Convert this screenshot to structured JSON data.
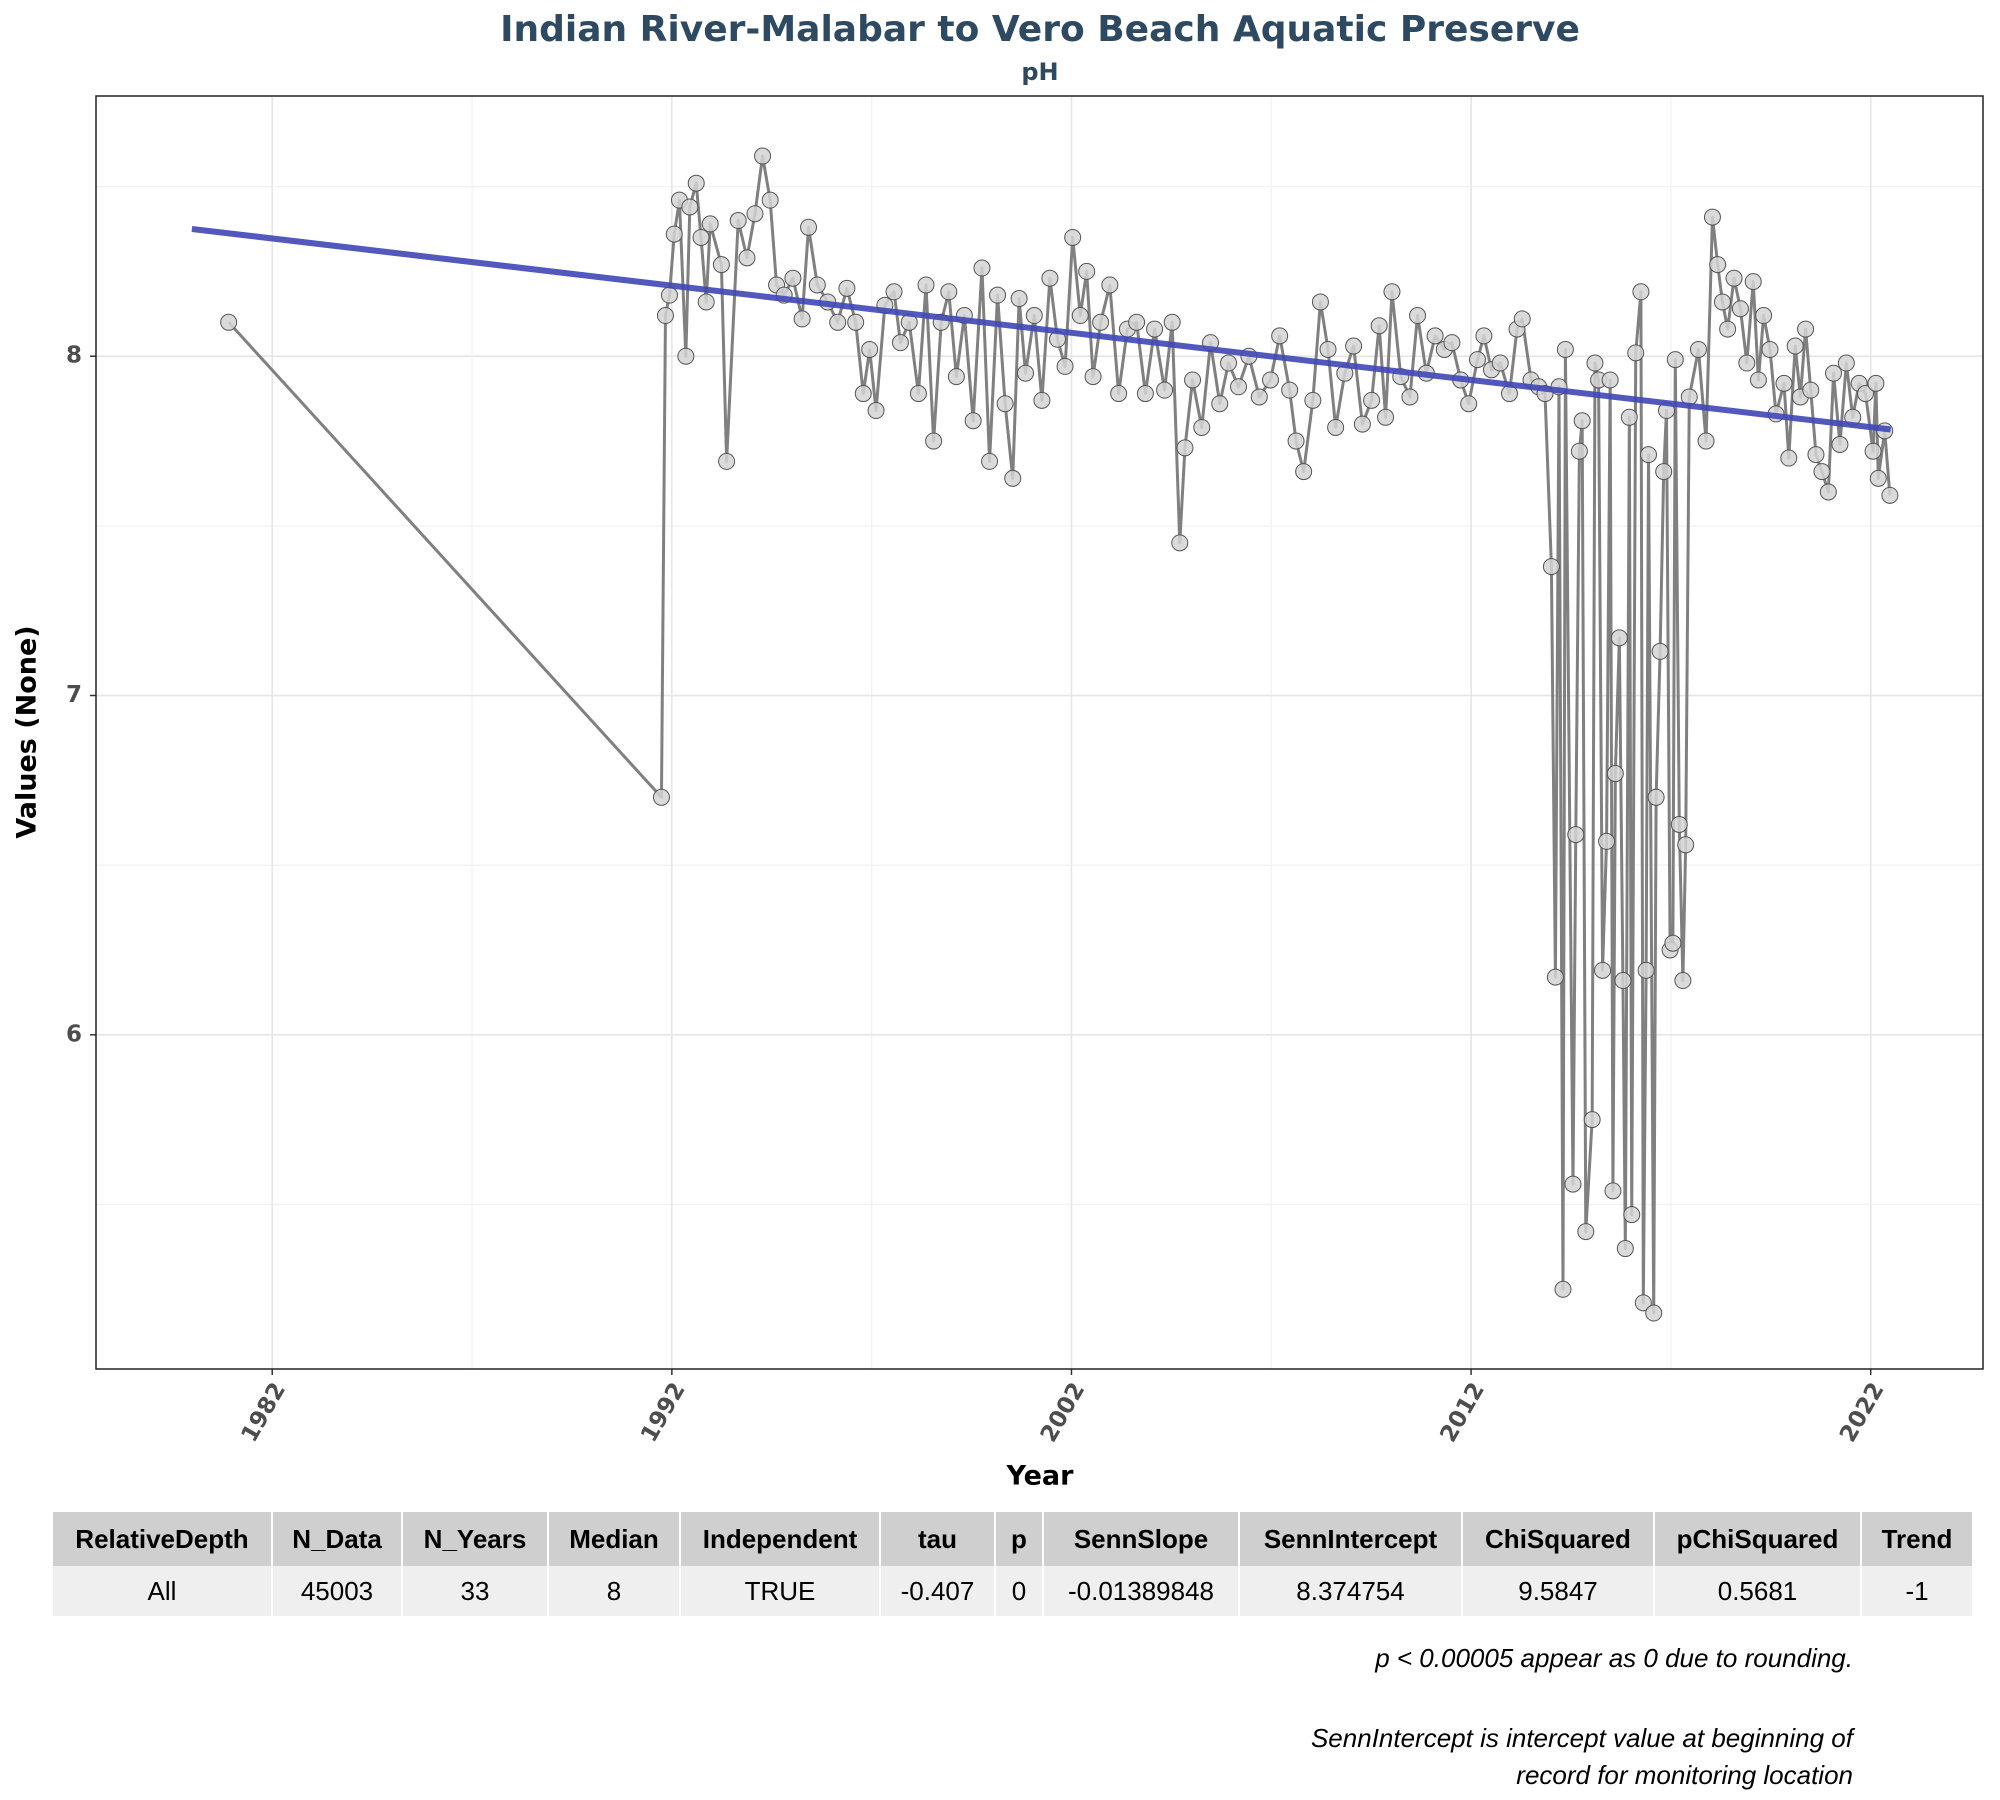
{
  "chart_data": {
    "type": "line",
    "title": "Indian River-Malabar to Vero Beach Aquatic Preserve",
    "subtitle": "pH",
    "xlabel": "Year",
    "ylabel": "Values (None)",
    "xlim": [
      1977.59,
      2024.81
    ],
    "ylim": [
      5.015,
      8.767
    ],
    "xticks": [
      1982,
      1992,
      2002,
      2012,
      2022
    ],
    "yticks": [
      6,
      7,
      8
    ],
    "x_minor_ticks": [
      1987,
      1997,
      2007,
      2017
    ],
    "y_minor_ticks": [
      5.5,
      6.5,
      7.5,
      8.5
    ],
    "grid": true,
    "series": [
      {
        "color": "#808080",
        "marker_color": "#d3d3d3",
        "markers": true,
        "x": [
          1980.91,
          1991.74,
          1991.84,
          1991.94,
          1992.06,
          1992.19,
          1992.35,
          1992.45,
          1992.61,
          1992.73,
          1992.86,
          1992.96,
          1993.24,
          1993.37,
          1993.66,
          1993.88,
          1994.08,
          1994.27,
          1994.46,
          1994.62,
          1994.81,
          1995.03,
          1995.26,
          1995.42,
          1995.64,
          1995.9,
          1996.15,
          1996.38,
          1996.6,
          1996.79,
          1996.95,
          1997.11,
          1997.33,
          1997.56,
          1997.72,
          1997.94,
          1998.17,
          1998.36,
          1998.55,
          1998.74,
          1998.93,
          1999.12,
          1999.32,
          1999.54,
          1999.76,
          1999.95,
          2000.15,
          2000.34,
          2000.53,
          2000.69,
          2000.85,
          2001.07,
          2001.26,
          2001.46,
          2001.65,
          2001.84,
          2002.03,
          2002.22,
          2002.38,
          2002.54,
          2002.73,
          2002.96,
          2003.18,
          2003.4,
          2003.63,
          2003.85,
          2004.08,
          2004.33,
          2004.52,
          2004.71,
          2004.84,
          2005.03,
          2005.26,
          2005.48,
          2005.71,
          2005.93,
          2006.18,
          2006.44,
          2006.7,
          2006.98,
          2007.21,
          2007.46,
          2007.62,
          2007.81,
          2008.04,
          2008.23,
          2008.42,
          2008.61,
          2008.84,
          2009.06,
          2009.28,
          2009.51,
          2009.7,
          2009.86,
          2010.02,
          2010.24,
          2010.47,
          2010.66,
          2010.88,
          2011.1,
          2011.33,
          2011.52,
          2011.74,
          2011.94,
          2012.16,
          2012.32,
          2012.51,
          2012.73,
          2012.96,
          2013.15,
          2013.28,
          2013.5,
          2013.69,
          2013.85,
          2014.01,
          2014.11,
          2014.2,
          2014.3,
          2014.36,
          2014.55,
          2014.62,
          2014.71,
          2014.78,
          2014.87,
          2015.03,
          2015.1,
          2015.19,
          2015.29,
          2015.39,
          2015.48,
          2015.55,
          2015.61,
          2015.71,
          2015.8,
          2015.86,
          2015.96,
          2016.02,
          2016.12,
          2016.25,
          2016.31,
          2016.38,
          2016.44,
          2016.57,
          2016.63,
          2016.73,
          2016.82,
          2016.89,
          2016.98,
          2017.05,
          2017.11,
          2017.21,
          2017.3,
          2017.37,
          2017.46,
          2017.69,
          2017.88,
          2018.04,
          2018.17,
          2018.29,
          2018.42,
          2018.58,
          2018.74,
          2018.9,
          2019.06,
          2019.19,
          2019.32,
          2019.48,
          2019.63,
          2019.83,
          2019.95,
          2020.11,
          2020.24,
          2020.37,
          2020.5,
          2020.63,
          2020.78,
          2020.94,
          2021.07,
          2021.23,
          2021.39,
          2021.55,
          2021.71,
          2021.87,
          2022.06,
          2022.13,
          2022.19,
          2022.35,
          2022.48
        ],
        "values": [
          8.1,
          6.7,
          8.12,
          8.18,
          8.36,
          8.46,
          8.0,
          8.44,
          8.51,
          8.35,
          8.16,
          8.39,
          8.27,
          7.69,
          8.4,
          8.29,
          8.42,
          8.59,
          8.46,
          8.21,
          8.18,
          8.23,
          8.11,
          8.38,
          8.21,
          8.16,
          8.1,
          8.2,
          8.1,
          7.89,
          8.02,
          7.84,
          8.15,
          8.19,
          8.04,
          8.1,
          7.89,
          8.21,
          7.75,
          8.1,
          8.19,
          7.94,
          8.12,
          7.81,
          8.26,
          7.69,
          8.18,
          7.86,
          7.64,
          8.17,
          7.95,
          8.12,
          7.87,
          8.23,
          8.05,
          7.97,
          8.35,
          8.12,
          8.25,
          7.94,
          8.1,
          8.21,
          7.89,
          8.08,
          8.1,
          7.89,
          8.08,
          7.9,
          8.1,
          7.45,
          7.73,
          7.93,
          7.79,
          8.04,
          7.86,
          7.98,
          7.91,
          8.0,
          7.88,
          7.93,
          8.06,
          7.9,
          7.75,
          7.66,
          7.87,
          8.16,
          8.02,
          7.79,
          7.95,
          8.03,
          7.8,
          7.87,
          8.09,
          7.82,
          8.19,
          7.94,
          7.88,
          8.12,
          7.95,
          8.06,
          8.02,
          8.04,
          7.93,
          7.86,
          7.99,
          8.06,
          7.96,
          7.98,
          7.89,
          8.08,
          8.11,
          7.93,
          7.91,
          7.89,
          7.38,
          6.17,
          7.91,
          5.25,
          8.02,
          5.56,
          6.59,
          7.72,
          7.81,
          5.42,
          5.75,
          7.98,
          7.93,
          6.19,
          6.57,
          7.93,
          5.54,
          6.77,
          7.17,
          6.16,
          5.37,
          7.82,
          5.47,
          8.01,
          8.19,
          5.21,
          6.19,
          7.71,
          5.18,
          6.7,
          7.13,
          7.66,
          7.84,
          6.25,
          6.27,
          7.99,
          6.62,
          6.16,
          6.56,
          7.88,
          8.02,
          7.75,
          8.41,
          8.27,
          8.16,
          8.08,
          8.23,
          8.14,
          7.98,
          8.22,
          7.93,
          8.12,
          8.02,
          7.83,
          7.92,
          7.7,
          8.03,
          7.88,
          8.08,
          7.9,
          7.71,
          7.66,
          7.6,
          7.95,
          7.74,
          7.98,
          7.82,
          7.92,
          7.89,
          7.72,
          7.92,
          7.64,
          7.78,
          7.59
        ]
      },
      {
        "color": "#3f46b5",
        "markers": false,
        "x": [
          1979.99,
          2022.5
        ],
        "values": [
          8.375,
          7.784
        ]
      }
    ]
  },
  "table": {
    "columns": [
      "RelativeDepth",
      "N_Data",
      "N_Years",
      "Median",
      "Independent",
      "tau",
      "p",
      "SennSlope",
      "SennIntercept",
      "ChiSquared",
      "pChiSquared",
      "Trend"
    ],
    "rows": [
      [
        "All",
        45003,
        33,
        8,
        "TRUE",
        -0.407,
        0,
        -0.01389848,
        8.374754,
        9.5847,
        0.5681,
        -1
      ]
    ]
  },
  "notes": [
    "p < 0.00005 appear as 0 due to rounding.",
    "SennIntercept is intercept value at beginning of",
    "record for monitoring location"
  ]
}
